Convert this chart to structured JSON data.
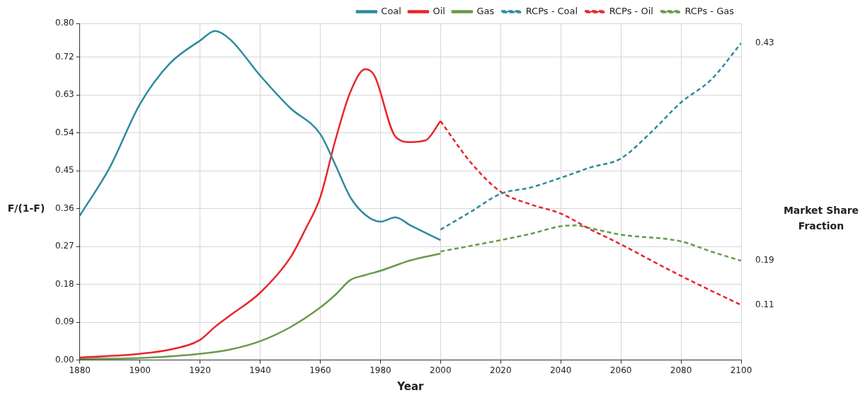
{
  "chart_data": {
    "type": "line",
    "xlabel": "Year",
    "ylabel": "F/(1-F)",
    "y2label": "Market Share Fraction",
    "xlim": [
      1880,
      2100
    ],
    "xticks": [
      1880,
      1900,
      1920,
      1940,
      1960,
      1980,
      2000,
      2020,
      2040,
      2060,
      2080,
      2100
    ],
    "ylim": [
      0,
      0.8
    ],
    "yticks": [
      {
        "value": 0,
        "label": "0.00"
      },
      0.09,
      0.18,
      0.27,
      0.36,
      0.45,
      0.54,
      0.63,
      0.72,
      {
        "value": 0.8,
        "label": "0.80"
      }
    ],
    "annotations": [
      "0.43",
      "0.11",
      "0.19"
    ],
    "grid": true,
    "legend": "top right",
    "marker": "none",
    "series": [
      {
        "name": "Coal",
        "color": "#2e8b9e",
        "line_style": "solid",
        "x": [
          1880,
          1890,
          1900,
          1910,
          1920,
          1925,
          1930,
          1940,
          1950,
          1960,
          1965,
          1970,
          1975,
          1980,
          1985,
          1990,
          2000
        ],
        "values": [
          0.343,
          0.458,
          0.608,
          0.705,
          0.759,
          0.782,
          0.762,
          0.676,
          0.599,
          0.537,
          0.464,
          0.387,
          0.345,
          0.329,
          0.339,
          0.32,
          0.285
        ]
      },
      {
        "name": "Oil",
        "color": "#e8262b",
        "line_style": "solid",
        "x": [
          1880,
          1900,
          1910,
          1920,
          1925,
          1930,
          1940,
          1950,
          1955,
          1960,
          1965,
          1970,
          1975,
          1978,
          1985,
          1990,
          1995,
          2000
        ],
        "values": [
          0.006,
          0.015,
          0.025,
          0.048,
          0.079,
          0.106,
          0.16,
          0.243,
          0.31,
          0.387,
          0.522,
          0.637,
          0.691,
          0.676,
          0.531,
          0.518,
          0.522,
          0.568
        ]
      },
      {
        "name": "Gas",
        "color": "#6a9a4a",
        "line_style": "solid",
        "x": [
          1880,
          1900,
          1920,
          1930,
          1940,
          1950,
          1960,
          1965,
          1970,
          1975,
          1980,
          1990,
          2000
        ],
        "values": [
          0.003,
          0.005,
          0.015,
          0.025,
          0.045,
          0.078,
          0.125,
          0.155,
          0.19,
          0.202,
          0.212,
          0.237,
          0.253
        ]
      },
      {
        "name": "RCPs - Coal",
        "color": "#2e8b9e",
        "line_style": "dashed",
        "x": [
          2000,
          2010,
          2020,
          2030,
          2040,
          2050,
          2060,
          2070,
          2080,
          2090,
          2100
        ],
        "values": [
          0.31,
          0.352,
          0.395,
          0.41,
          0.433,
          0.458,
          0.479,
          0.541,
          0.612,
          0.666,
          0.753
        ]
      },
      {
        "name": "RCPs - Oil",
        "color": "#e8262b",
        "line_style": "dashed",
        "x": [
          2000,
          2010,
          2020,
          2030,
          2040,
          2050,
          2060,
          2070,
          2080,
          2090,
          2100
        ],
        "values": [
          0.568,
          0.47,
          0.4,
          0.37,
          0.348,
          0.31,
          0.275,
          0.237,
          0.2,
          0.165,
          0.131
        ]
      },
      {
        "name": "RCPs - Gas",
        "color": "#6a9a4a",
        "line_style": "dashed",
        "x": [
          2000,
          2020,
          2030,
          2040,
          2045,
          2050,
          2060,
          2080,
          2090,
          2100
        ],
        "values": [
          0.258,
          0.285,
          0.3,
          0.318,
          0.32,
          0.313,
          0.298,
          0.282,
          0.258,
          0.236
        ]
      }
    ]
  }
}
